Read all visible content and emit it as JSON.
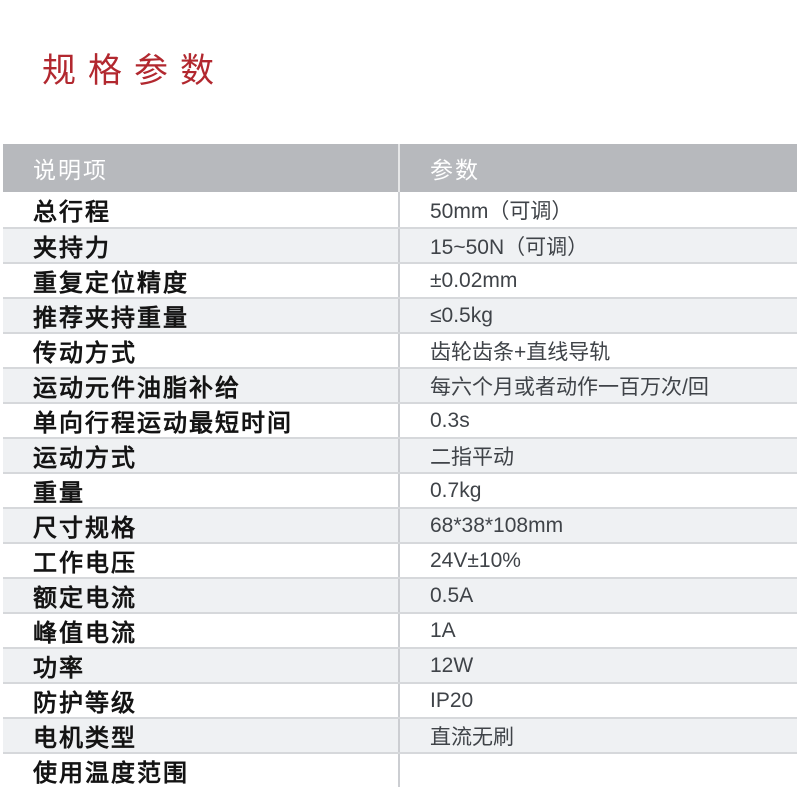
{
  "page": {
    "title": "规格参数"
  },
  "table": {
    "headers": {
      "item": "说明项",
      "param": "参数"
    },
    "rows": [
      {
        "label": "总行程",
        "value": "50mm（可调）"
      },
      {
        "label": "夹持力",
        "value": "15~50N（可调）"
      },
      {
        "label": "重复定位精度",
        "value": "±0.02mm"
      },
      {
        "label": "推荐夹持重量",
        "value": "≤0.5kg"
      },
      {
        "label": "传动方式",
        "value": "齿轮齿条+直线导轨"
      },
      {
        "label": "运动元件油脂补给",
        "value": "每六个月或者动作一百万次/回"
      },
      {
        "label": "单向行程运动最短时间",
        "value": "0.3s"
      },
      {
        "label": "运动方式",
        "value": "二指平动"
      },
      {
        "label": "重量",
        "value": "0.7kg"
      },
      {
        "label": "尺寸规格",
        "value": "68*38*108mm"
      },
      {
        "label": "工作电压",
        "value": "24V±10%"
      },
      {
        "label": "额定电流",
        "value": "0.5A"
      },
      {
        "label": "峰值电流",
        "value": "1A"
      },
      {
        "label": "功率",
        "value": "12W"
      },
      {
        "label": "防护等级",
        "value": "IP20"
      },
      {
        "label": "电机类型",
        "value": "直流无刷"
      },
      {
        "label": "使用温度范围",
        "value": ""
      }
    ]
  },
  "colors": {
    "title_red": "#b2282f",
    "header_bg": "#b7b9bd",
    "row_alt_bg": "#eff1f3",
    "h_divider": "#d6d8db",
    "v_divider": "#ccced2",
    "label_color": "#141414",
    "value_color": "#3f4348"
  }
}
